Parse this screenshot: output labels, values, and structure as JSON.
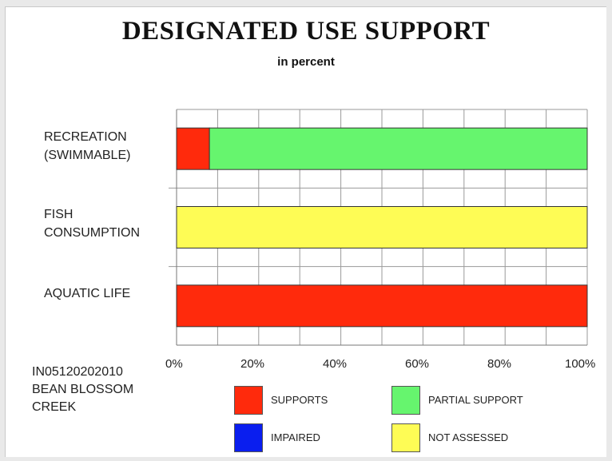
{
  "chart_data": {
    "type": "bar",
    "orientation": "horizontal",
    "stacked": true,
    "title": "DESIGNATED USE SUPPORT",
    "subtitle": "in percent",
    "categories": [
      "RECREATION\n(SWIMMABLE)",
      "FISH\nCONSUMPTION",
      "AQUATIC LIFE"
    ],
    "series": [
      {
        "name": "SUPPORTS",
        "color": "#ff2a0c",
        "values": [
          8,
          0,
          100
        ]
      },
      {
        "name": "PARTIAL SUPPORT",
        "color": "#66f56e",
        "values": [
          92,
          0,
          0
        ]
      },
      {
        "name": "IMPAIRED",
        "color": "#0a1eef",
        "values": [
          0,
          0,
          0
        ]
      },
      {
        "name": "NOT ASSESSED",
        "color": "#fefc55",
        "values": [
          0,
          100,
          0
        ]
      }
    ],
    "xlim": [
      0,
      100
    ],
    "xticks": [
      "0%",
      "20%",
      "40%",
      "60%",
      "80%",
      "100%"
    ],
    "grid": true,
    "legend_position": "bottom"
  },
  "site_label": "IN05120202010\nBEAN BLOSSOM\nCREEK"
}
